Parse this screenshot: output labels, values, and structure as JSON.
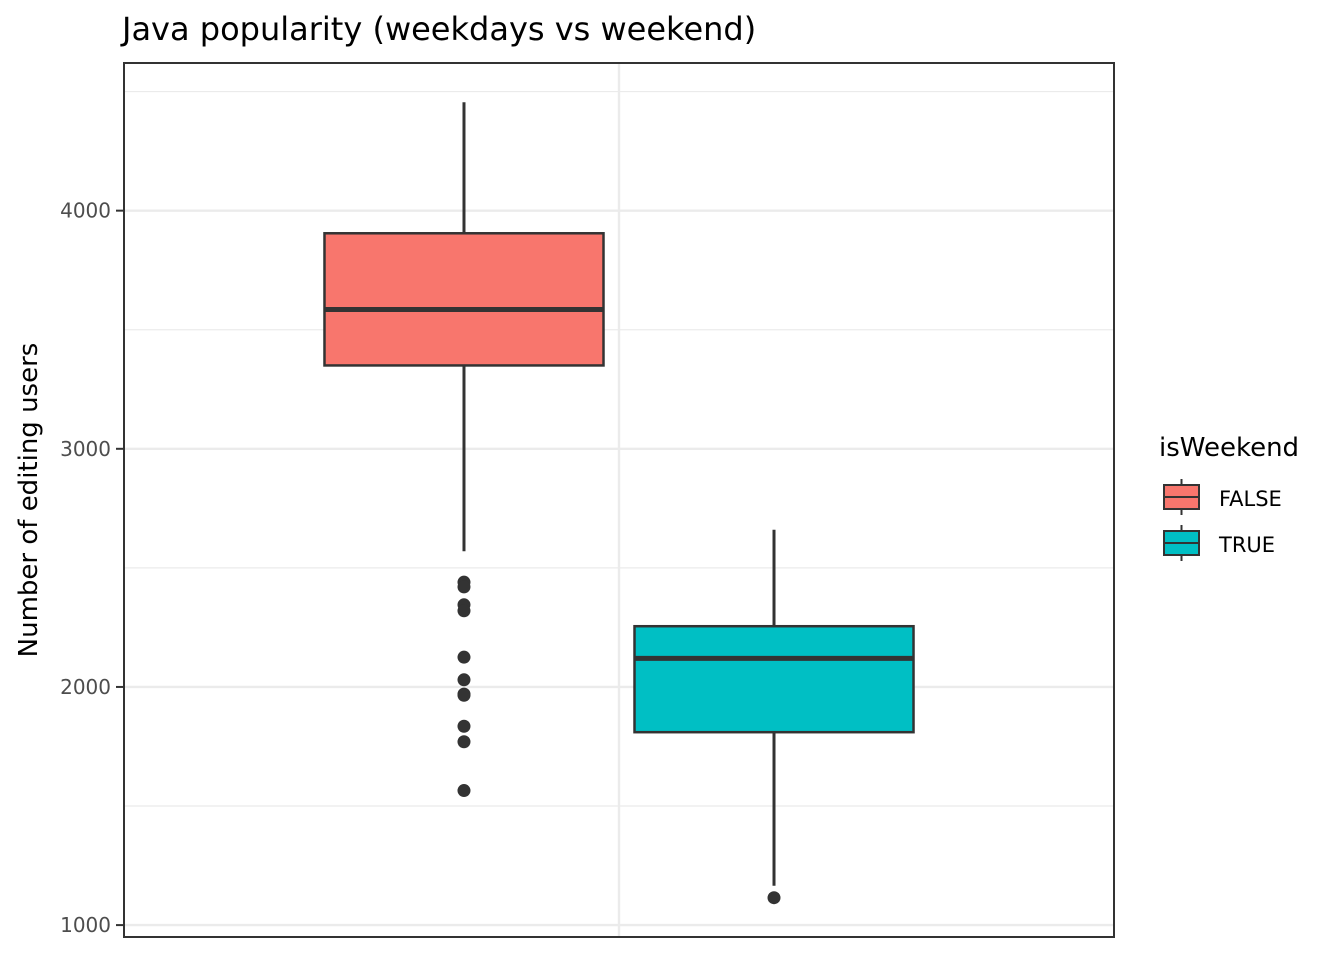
{
  "chart_data": {
    "type": "boxplot",
    "title": "Java popularity (weekdays vs weekend)",
    "xlabel": "",
    "ylabel": "Number of editing users",
    "ylim": [
      950,
      4620
    ],
    "yticks": [
      1000,
      2000,
      3000,
      4000
    ],
    "grid": true,
    "legend": {
      "title": "isWeekend",
      "placement": "right",
      "entries": [
        "FALSE",
        "TRUE"
      ]
    },
    "series": [
      {
        "name": "FALSE",
        "color": "#F8766D",
        "min": 2570,
        "q1": 3350,
        "median": 3585,
        "q3": 3905,
        "max": 4455,
        "outliers": [
          2440,
          2420,
          2345,
          2320,
          2125,
          2030,
          1970,
          1965,
          1835,
          1770,
          1565
        ]
      },
      {
        "name": "TRUE",
        "color": "#00BFC4",
        "min": 1165,
        "q1": 1810,
        "median": 2120,
        "q3": 2255,
        "max": 2660,
        "outliers": [
          1115
        ]
      }
    ]
  }
}
